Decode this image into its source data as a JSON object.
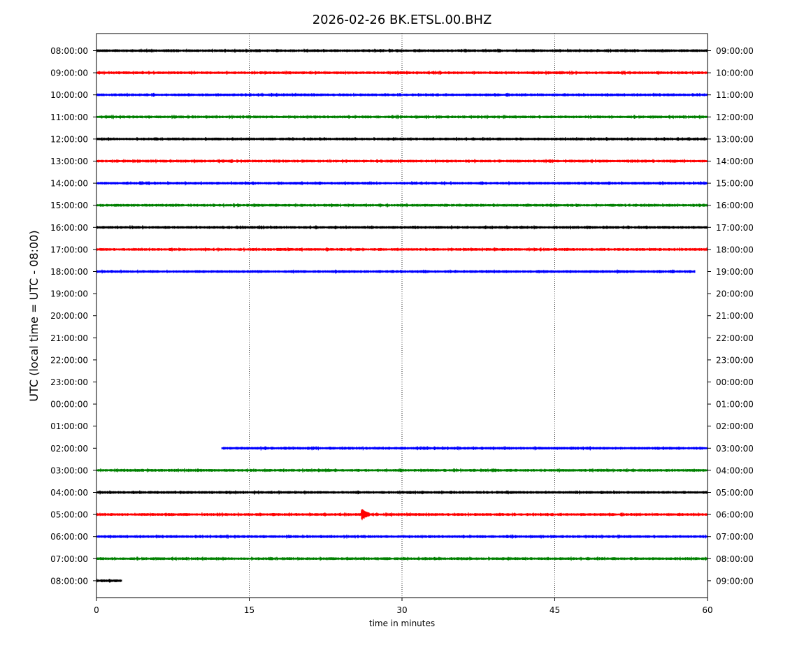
{
  "chart_data": {
    "type": "line",
    "title": "2026-02-26 BK.ETSL.00.BHZ",
    "xlabel": "time in minutes",
    "ylabel": "UTC (local time = UTC - 08:00)",
    "xlim": [
      0,
      60
    ],
    "x_ticks": [
      "0",
      "15",
      "30",
      "45",
      "60"
    ],
    "x_tick_values": [
      0,
      15,
      30,
      45,
      60
    ],
    "grid": "vertical dotted lines at 15, 30, 45",
    "colors": [
      "#000000",
      "#ff0000",
      "#0000ff",
      "#008000"
    ],
    "rows": [
      {
        "left": "08:00:00",
        "right": "09:00:00",
        "color": "#000000",
        "start_min": 0,
        "end_min": 60
      },
      {
        "left": "09:00:00",
        "right": "10:00:00",
        "color": "#ff0000",
        "start_min": 0,
        "end_min": 60
      },
      {
        "left": "10:00:00",
        "right": "11:00:00",
        "color": "#0000ff",
        "start_min": 0,
        "end_min": 60
      },
      {
        "left": "11:00:00",
        "right": "12:00:00",
        "color": "#008000",
        "start_min": 0,
        "end_min": 60
      },
      {
        "left": "12:00:00",
        "right": "13:00:00",
        "color": "#000000",
        "start_min": 0,
        "end_min": 60
      },
      {
        "left": "13:00:00",
        "right": "14:00:00",
        "color": "#ff0000",
        "start_min": 0,
        "end_min": 60
      },
      {
        "left": "14:00:00",
        "right": "15:00:00",
        "color": "#0000ff",
        "start_min": 0,
        "end_min": 60
      },
      {
        "left": "15:00:00",
        "right": "16:00:00",
        "color": "#008000",
        "start_min": 0,
        "end_min": 60
      },
      {
        "left": "16:00:00",
        "right": "17:00:00",
        "color": "#000000",
        "start_min": 0,
        "end_min": 60
      },
      {
        "left": "17:00:00",
        "right": "18:00:00",
        "color": "#ff0000",
        "start_min": 0,
        "end_min": 60
      },
      {
        "left": "18:00:00",
        "right": "19:00:00",
        "color": "#0000ff",
        "start_min": 0,
        "end_min": 58.8
      },
      {
        "left": "19:00:00",
        "right": "20:00:00",
        "color": "#008000",
        "start_min": null,
        "end_min": null
      },
      {
        "left": "20:00:00",
        "right": "21:00:00",
        "color": "#000000",
        "start_min": null,
        "end_min": null
      },
      {
        "left": "21:00:00",
        "right": "22:00:00",
        "color": "#ff0000",
        "start_min": null,
        "end_min": null
      },
      {
        "left": "22:00:00",
        "right": "23:00:00",
        "color": "#0000ff",
        "start_min": null,
        "end_min": null
      },
      {
        "left": "23:00:00",
        "right": "00:00:00",
        "color": "#008000",
        "start_min": null,
        "end_min": null
      },
      {
        "left": "00:00:00",
        "right": "01:00:00",
        "color": "#000000",
        "start_min": null,
        "end_min": null
      },
      {
        "left": "01:00:00",
        "right": "02:00:00",
        "color": "#ff0000",
        "start_min": null,
        "end_min": null
      },
      {
        "left": "02:00:00",
        "right": "03:00:00",
        "color": "#0000ff",
        "start_min": 12.3,
        "end_min": 60
      },
      {
        "left": "03:00:00",
        "right": "04:00:00",
        "color": "#008000",
        "start_min": 0,
        "end_min": 60
      },
      {
        "left": "04:00:00",
        "right": "05:00:00",
        "color": "#000000",
        "start_min": 0,
        "end_min": 60
      },
      {
        "left": "05:00:00",
        "right": "06:00:00",
        "color": "#ff0000",
        "start_min": 0,
        "end_min": 60,
        "event_min": 26.1
      },
      {
        "left": "06:00:00",
        "right": "07:00:00",
        "color": "#0000ff",
        "start_min": 0,
        "end_min": 60
      },
      {
        "left": "07:00:00",
        "right": "08:00:00",
        "color": "#008000",
        "start_min": 0,
        "end_min": 60
      },
      {
        "left": "08:00:00",
        "right": "09:00:00",
        "color": "#000000",
        "start_min": 0,
        "end_min": 2.5
      }
    ]
  }
}
